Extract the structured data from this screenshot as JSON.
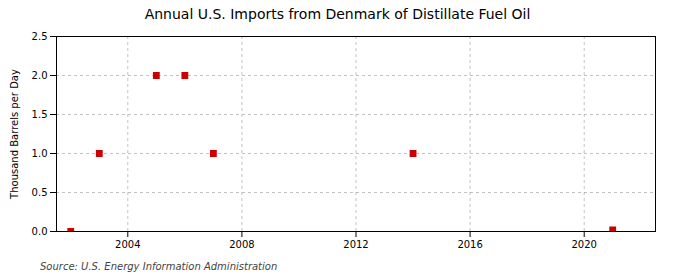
{
  "chart_data": {
    "type": "scatter",
    "title": "Annual U.S. Imports from Denmark of Distillate Fuel Oil",
    "ylabel": "Thousand Barrels per Day",
    "source": "Source: U.S. Energy Information Administration",
    "x": [
      2002,
      2003,
      2005,
      2006,
      2007,
      2014,
      2021
    ],
    "values": [
      0.0,
      1.0,
      2.0,
      2.0,
      1.0,
      1.0,
      0.02
    ],
    "color": "#cc0000",
    "marker": "square",
    "xlim": [
      2001.5,
      2022.5
    ],
    "xticks": [
      2004,
      2008,
      2012,
      2016,
      2020
    ],
    "ylim": [
      0.0,
      2.5
    ],
    "yticks": [
      {
        "value": 0.0,
        "label": "0.0"
      },
      0.5,
      {
        "value": 1.0,
        "label": "1.0"
      },
      1.5,
      {
        "value": 2.0,
        "label": "2.0"
      },
      2.5
    ],
    "grid": true
  }
}
